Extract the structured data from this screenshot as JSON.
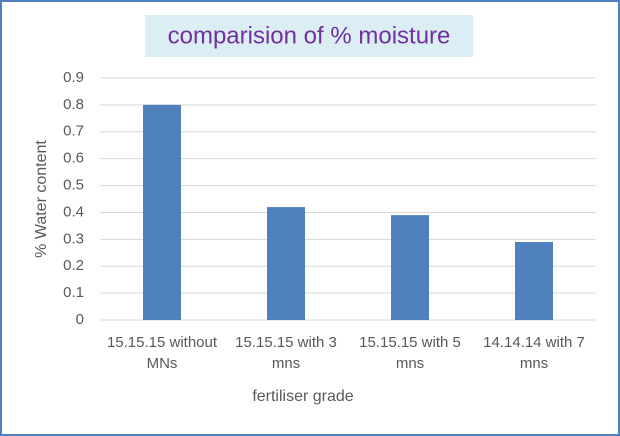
{
  "chart_data": {
    "type": "bar",
    "title": "comparision of % moisture",
    "x_label": "fertiliser grade",
    "y_label": "% Water content",
    "categories": [
      "15.15.15 without MNs",
      "15.15.15 with 3 mns",
      "15.15.15 with 5 mns",
      "14.14.14 with 7 mns"
    ],
    "values": [
      0.8,
      0.42,
      0.39,
      0.29
    ],
    "color": "#4f81bd",
    "ylim": [
      0,
      0.9
    ],
    "yticks": [
      0,
      0.1,
      0.2,
      0.3,
      0.4,
      0.5,
      0.6,
      0.7,
      0.8,
      0.9
    ],
    "grid": true
  }
}
